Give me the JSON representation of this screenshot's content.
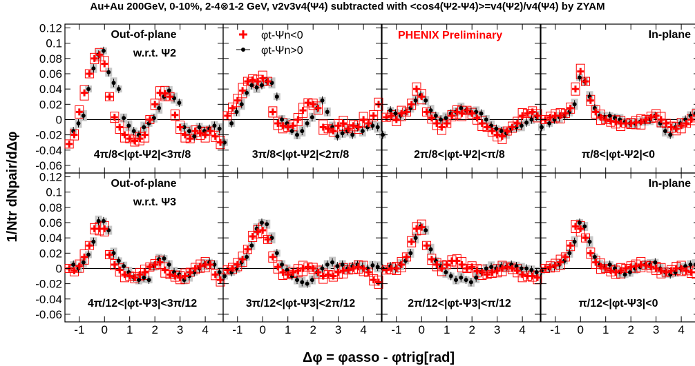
{
  "chart_data": {
    "type": "scatter",
    "title": "Au+Au 200GeV, 0-10%, 2-4⊗1-2 GeV, v2v3v4(Ψ4) subtracted with <cos4(Ψ2-Ψ4)>=v4(Ψ2)/v4(Ψ4) by ZYAM",
    "xlabel": "Δφ = φasso - φtrig[rad]",
    "ylabel": "1/Ntr dNpair/dΔφ",
    "xlim": [
      -1.57,
      4.71
    ],
    "ylim": [
      -0.07,
      0.125
    ],
    "x_ticks": [
      "-1",
      "0",
      "1",
      "2",
      "3",
      "4"
    ],
    "y_ticks": [
      "0.12",
      "0.1",
      "0.08",
      "0.06",
      "0.04",
      "0.02",
      "0",
      "-0.02",
      "-0.04",
      "-0.06"
    ],
    "legend": {
      "position": "top",
      "entries": [
        {
          "marker": "red-cross",
          "label": "φt-Ψn<0"
        },
        {
          "marker": "black-dot",
          "label": "φt-Ψn>0"
        }
      ]
    },
    "annotation": "PHENIX Preliminary",
    "grid": false,
    "x": [
      -1.4,
      -1.2,
      -1.0,
      -0.8,
      -0.6,
      -0.4,
      -0.2,
      0.0,
      0.2,
      0.4,
      0.6,
      0.8,
      1.0,
      1.2,
      1.4,
      1.6,
      1.8,
      2.0,
      2.2,
      2.4,
      2.6,
      2.8,
      3.0,
      3.2,
      3.4,
      3.6,
      3.8,
      4.0,
      4.2,
      4.4,
      4.6
    ],
    "panels": [
      {
        "row": 0,
        "col": 0,
        "header": "Out-of-plane",
        "subheader": "w.r.t. Ψ2",
        "range_label": "4π/8<|φt-Ψ2|<3π/8",
        "series": [
          {
            "name": "φt-Ψn<0",
            "values": [
              -0.032,
              -0.02,
              0.01,
              0.035,
              0.06,
              0.08,
              0.085,
              0.073,
              0.03,
              0.003,
              -0.01,
              -0.02,
              -0.025,
              -0.028,
              -0.025,
              -0.02,
              0.0,
              0.02,
              0.035,
              0.034,
              0.03,
              0.006,
              -0.01,
              -0.02,
              -0.025,
              -0.015,
              -0.018,
              -0.02,
              -0.015,
              -0.022,
              -0.03
            ]
          },
          {
            "name": "φt-Ψn>0",
            "values": [
              -0.015,
              -0.005,
              0.005,
              0.04,
              0.067,
              0.085,
              0.09,
              0.062,
              0.048,
              0.04,
              0.002,
              -0.008,
              -0.015,
              -0.02,
              -0.01,
              -0.005,
              0.002,
              0.015,
              0.03,
              0.038,
              0.028,
              0.022,
              -0.01,
              -0.015,
              -0.022,
              -0.01,
              -0.015,
              -0.012,
              -0.008,
              -0.012,
              -0.03
            ]
          }
        ]
      },
      {
        "row": 0,
        "col": 1,
        "header": "",
        "subheader": "",
        "range_label": "3π/8<|φt-Ψ2|<2π/8",
        "series": [
          {
            "name": "φt-Ψn<0",
            "values": [
              0.005,
              0.015,
              0.025,
              0.038,
              0.05,
              0.052,
              0.05,
              0.054,
              0.05,
              0.01,
              -0.005,
              -0.008,
              -0.01,
              -0.008,
              0.0,
              0.012,
              0.022,
              0.02,
              0.015,
              -0.01,
              -0.012,
              -0.015,
              -0.008,
              -0.005,
              -0.012,
              -0.008,
              -0.01,
              0.0,
              -0.005,
              0.005,
              0.02
            ]
          },
          {
            "name": "φt-Ψn>0",
            "values": [
              -0.005,
              0.01,
              0.02,
              0.035,
              0.045,
              0.042,
              0.045,
              0.05,
              0.048,
              0.03,
              0.0,
              -0.005,
              -0.015,
              -0.02,
              -0.015,
              -0.005,
              0.003,
              0.015,
              0.025,
              0.01,
              -0.01,
              -0.022,
              -0.018,
              -0.015,
              -0.02,
              -0.01,
              -0.015,
              -0.01,
              -0.008,
              -0.01,
              -0.02
            ]
          }
        ]
      },
      {
        "row": 0,
        "col": 2,
        "header": "",
        "subheader": "",
        "range_label": "2π/8<|φt-Ψ2|<π/8",
        "series": [
          {
            "name": "φt-Ψn<0",
            "values": [
              0.003,
              0.005,
              0.0,
              0.008,
              0.01,
              0.02,
              0.04,
              0.03,
              0.01,
              0.002,
              -0.005,
              -0.01,
              -0.005,
              0.005,
              0.01,
              0.008,
              0.012,
              0.008,
              0.002,
              -0.005,
              -0.01,
              -0.015,
              -0.02,
              -0.022,
              -0.015,
              -0.01,
              -0.005,
              0.005,
              0.008,
              0.01,
              0.005
            ]
          },
          {
            "name": "φt-Ψn>0",
            "values": [
              0.012,
              0.008,
              0.005,
              0.01,
              0.015,
              0.025,
              0.032,
              0.025,
              0.012,
              0.005,
              0.0,
              0.002,
              0.008,
              0.01,
              0.015,
              0.012,
              0.01,
              0.01,
              0.008,
              0.0,
              -0.008,
              -0.012,
              -0.015,
              -0.018,
              -0.012,
              -0.01,
              -0.008,
              -0.004,
              0.0,
              0.004,
              -0.01
            ]
          }
        ]
      },
      {
        "row": 0,
        "col": 3,
        "header": "In-plane",
        "subheader": "",
        "range_label": "π/8<|φt-Ψ2|<0",
        "series": [
          {
            "name": "φt-Ψn<0",
            "values": [
              0.0,
              0.003,
              0.005,
              0.005,
              0.008,
              0.015,
              0.04,
              0.063,
              0.05,
              0.025,
              0.01,
              0.003,
              0.0,
              -0.002,
              -0.003,
              -0.005,
              -0.005,
              -0.005,
              -0.004,
              -0.003,
              0.0,
              0.003,
              0.005,
              0.0,
              -0.005,
              -0.01,
              -0.012,
              -0.008,
              -0.005,
              0.0,
              0.005
            ]
          },
          {
            "name": "φt-Ψn>0",
            "values": [
              -0.005,
              0.0,
              0.003,
              0.005,
              0.01,
              0.02,
              0.055,
              0.05,
              0.03,
              0.015,
              0.005,
              0.003,
              0.005,
              0.002,
              0.0,
              -0.003,
              -0.005,
              -0.005,
              -0.003,
              -0.002,
              0.0,
              0.005,
              -0.005,
              -0.015,
              -0.02,
              -0.01,
              -0.005,
              0.0,
              0.005,
              0.008,
              0.012
            ]
          }
        ]
      },
      {
        "row": 1,
        "col": 0,
        "header": "Out-of-plane",
        "subheader": "w.r.t. Ψ3",
        "range_label": "4π/12<|φt-Ψ3|<3π/12",
        "series": [
          {
            "name": "φt-Ψn<0",
            "values": [
              0.0,
              -0.003,
              0.003,
              0.015,
              0.03,
              0.052,
              0.052,
              0.052,
              0.018,
              0.005,
              -0.002,
              -0.008,
              -0.01,
              -0.012,
              -0.008,
              -0.005,
              0.002,
              0.005,
              0.008,
              -0.002,
              -0.008,
              -0.01,
              -0.012,
              -0.01,
              -0.005,
              0.0,
              0.003,
              0.005,
              0.005,
              -0.008,
              -0.015
            ]
          },
          {
            "name": "φt-Ψn>0",
            "values": [
              0.005,
              0.0,
              0.008,
              0.018,
              0.035,
              0.062,
              0.062,
              0.05,
              0.02,
              0.01,
              0.003,
              -0.005,
              -0.012,
              -0.015,
              -0.012,
              -0.015,
              0.003,
              0.012,
              0.013,
              0.005,
              -0.005,
              -0.008,
              -0.015,
              -0.01,
              -0.005,
              0.0,
              0.005,
              0.008,
              0.005,
              -0.005,
              -0.01
            ]
          }
        ]
      },
      {
        "row": 1,
        "col": 1,
        "header": "",
        "subheader": "",
        "range_label": "3π/12<|φt-Ψ3|<2π/12",
        "series": [
          {
            "name": "φt-Ψn<0",
            "values": [
              -0.002,
              0.0,
              0.005,
              0.012,
              0.025,
              0.042,
              0.048,
              0.05,
              0.038,
              0.015,
              0.002,
              -0.005,
              -0.008,
              -0.005,
              -0.003,
              0.0,
              0.002,
              0.0,
              -0.005,
              -0.01,
              -0.008,
              -0.01,
              -0.005,
              -0.003,
              -0.002,
              0.0,
              0.002,
              0.0,
              -0.005,
              -0.015,
              -0.018
            ]
          },
          {
            "name": "φt-Ψn>0",
            "values": [
              -0.005,
              0.0,
              0.008,
              0.015,
              0.03,
              0.052,
              0.06,
              0.058,
              0.04,
              0.02,
              0.005,
              -0.002,
              -0.01,
              -0.015,
              -0.018,
              -0.02,
              -0.015,
              -0.005,
              0.0,
              0.005,
              0.008,
              0.003,
              0.005,
              0.0,
              0.003,
              0.005,
              0.002,
              0.0,
              0.004,
              0.002,
              0.0
            ]
          }
        ]
      },
      {
        "row": 1,
        "col": 2,
        "header": "",
        "subheader": "",
        "range_label": "2π/12<|φt-Ψ3|<π/12",
        "series": [
          {
            "name": "φt-Ψn<0",
            "values": [
              -0.002,
              0.0,
              0.0,
              0.005,
              0.015,
              0.035,
              0.052,
              0.054,
              0.03,
              0.012,
              0.005,
              0.0,
              0.005,
              0.01,
              0.01,
              0.005,
              0.0,
              0.002,
              -0.003,
              -0.005,
              -0.008,
              -0.005,
              -0.003,
              0.0,
              0.002,
              0.0,
              -0.003,
              -0.008,
              -0.01,
              -0.01,
              -0.012
            ]
          },
          {
            "name": "φt-Ψn>0",
            "values": [
              0.003,
              0.0,
              0.005,
              0.01,
              0.02,
              0.04,
              0.055,
              0.05,
              0.025,
              0.01,
              0.003,
              -0.005,
              -0.01,
              -0.015,
              -0.012,
              -0.015,
              -0.018,
              -0.012,
              -0.005,
              0.0,
              0.002,
              0.0,
              0.003,
              0.002,
              0.005,
              0.003,
              0.0,
              0.0,
              -0.002,
              -0.005,
              -0.003
            ]
          }
        ]
      },
      {
        "row": 1,
        "col": 3,
        "header": "In-plane",
        "subheader": "",
        "range_label": "π/12<|φt-Ψ3|<0",
        "series": [
          {
            "name": "φt-Ψn<0",
            "values": [
              0.0,
              0.002,
              0.004,
              0.008,
              0.015,
              0.03,
              0.055,
              0.052,
              0.04,
              0.02,
              0.008,
              0.003,
              0.0,
              -0.003,
              -0.005,
              -0.003,
              0.0,
              0.002,
              0.003,
              0.005,
              0.004,
              0.002,
              0.0,
              -0.003,
              -0.005,
              -0.003,
              0.0,
              0.0,
              -0.003,
              -0.005,
              -0.005
            ]
          },
          {
            "name": "φt-Ψn>0",
            "values": [
              0.0,
              0.003,
              0.005,
              0.01,
              0.02,
              0.035,
              0.06,
              0.055,
              0.035,
              0.015,
              0.005,
              0.002,
              0.005,
              0.0,
              -0.005,
              -0.008,
              -0.005,
              0.0,
              0.002,
              0.005,
              0.005,
              0.008,
              0.0,
              -0.005,
              -0.008,
              -0.005,
              0.0,
              0.003,
              0.005,
              0.005,
              0.003
            ]
          }
        ]
      }
    ]
  }
}
